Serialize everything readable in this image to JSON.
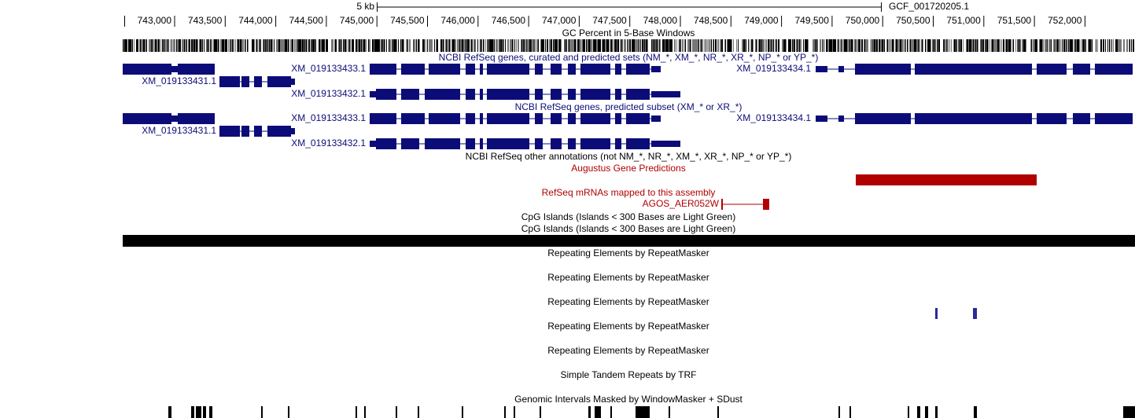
{
  "ruler": {
    "scale_label": "5 kb",
    "assembly": "GCF_001720205.1",
    "positions": [
      "743,000",
      "743,500",
      "744,000",
      "744,500",
      "745,000",
      "745,500",
      "746,000",
      "746,500",
      "747,000",
      "747,500",
      "748,000",
      "748,500",
      "749,000",
      "749,500",
      "750,000",
      "750,500",
      "751,000",
      "751,500",
      "752,000"
    ]
  },
  "tracks": [
    {
      "title": "GC Percent in 5-Base Windows"
    },
    {
      "title": "NCBI RefSeq genes, curated and predicted sets (NM_*, XM_*, NR_*, XR_*, NP_* or YP_*)",
      "labels": [
        "XM_019133433.1",
        "XM_019133434.1",
        "XM_019133431.1",
        "XM_019133432.1"
      ]
    },
    {
      "title": "NCBI RefSeq genes, predicted subset (XM_* or XR_*)",
      "labels": [
        "XM_019133433.1",
        "XM_019133434.1",
        "XM_019133431.1",
        "XM_019133432.1"
      ]
    },
    {
      "title": "NCBI RefSeq other annotations (not NM_*, NR_*, XM_*, XR_*, NP_* or YP_*)"
    },
    {
      "title": "Augustus Gene Predictions"
    },
    {
      "title": "RefSeq mRNAs mapped to this assembly",
      "labels": [
        "AGOS_AER052W"
      ]
    },
    {
      "title": "CpG Islands (Islands < 300 Bases are Light Green)"
    },
    {
      "title": "CpG Islands (Islands < 300 Bases are Light Green)"
    },
    {
      "title": "Repeating Elements by RepeatMasker"
    },
    {
      "title": "Repeating Elements by RepeatMasker"
    },
    {
      "title": "Repeating Elements by RepeatMasker"
    },
    {
      "title": "Repeating Elements by RepeatMasker"
    },
    {
      "title": "Repeating Elements by RepeatMasker"
    },
    {
      "title": "Simple Tandem Repeats by TRF"
    },
    {
      "title": "Genomic Intervals Masked by WindowMasker + SDust"
    }
  ]
}
